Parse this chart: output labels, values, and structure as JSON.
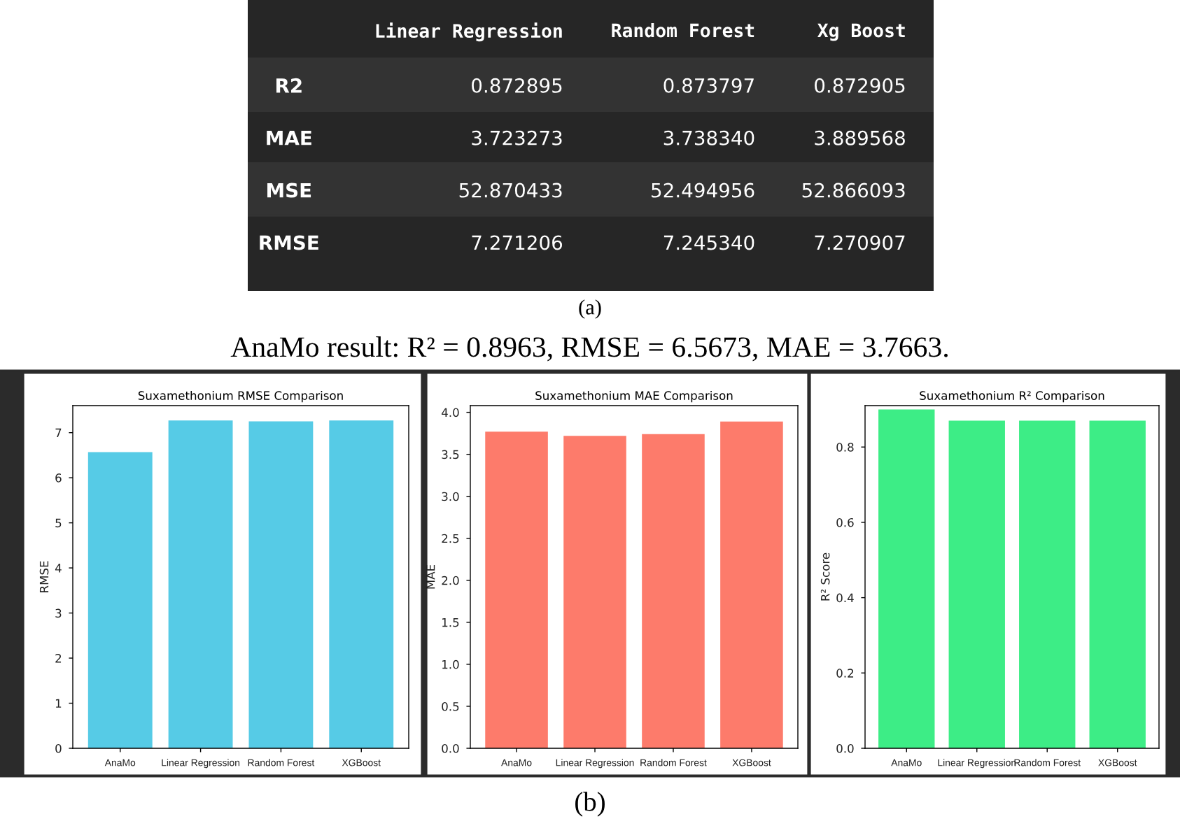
{
  "chart_data": [
    {
      "type": "other",
      "categories": [
        "Linear Regression",
        "Random Forest",
        "Xg Boost"
      ],
      "y_categories": [
        "R2",
        "MAE",
        "MSE",
        "RMSE"
      ],
      "cell_labels": [
        [
          "0.872895",
          "0.873797",
          "0.872905"
        ],
        [
          "3.723273",
          "3.738340",
          "3.889568"
        ],
        [
          "52.870433",
          "52.494956",
          "52.866093"
        ],
        [
          "7.271206",
          "7.245340",
          "7.270907"
        ]
      ],
      "annotations": [
        "(a)",
        "AnaMo result: R² = 0.8963, RMSE = 6.5673, MAE = 3.7663."
      ]
    },
    {
      "type": "bar",
      "title": "Suxamethonium RMSE Comparison",
      "ylabel": "RMSE",
      "categories": [
        "AnaMo",
        "Linear Regression",
        "Random Forest",
        "XGBoost"
      ],
      "values": [
        6.57,
        7.27,
        7.25,
        7.27
      ],
      "color": "#56cbe6",
      "ylim": [
        0,
        7.6
      ],
      "yticks": [
        0,
        1,
        2,
        3,
        4,
        5,
        6,
        7
      ],
      "grid": false
    },
    {
      "type": "bar",
      "title": "Suxamethonium MAE Comparison",
      "ylabel": "MAE",
      "categories": [
        "AnaMo",
        "Linear Regression",
        "Random Forest",
        "XGBoost"
      ],
      "values": [
        3.77,
        3.72,
        3.74,
        3.89
      ],
      "color": "#fd7b6b",
      "ylim": [
        0,
        4.08
      ],
      "yticks": [
        {
          "value": 0,
          "label": "0.0"
        },
        0.5,
        {
          "value": 1,
          "label": "1.0"
        },
        1.5,
        {
          "value": 2,
          "label": "2.0"
        },
        2.5,
        {
          "value": 3,
          "label": "3.0"
        },
        3.5,
        {
          "value": 4,
          "label": "4.0"
        }
      ],
      "grid": false,
      "annotations": [
        "(b)"
      ]
    },
    {
      "type": "bar",
      "title": "Suxamethonium R² Comparison",
      "ylabel": "R² Score",
      "categories": [
        "AnaMo",
        "Linear Regression",
        "Random Forest",
        "XGBoost"
      ],
      "values": [
        0.9,
        0.87,
        0.87,
        0.87
      ],
      "color": "#3ded86",
      "ylim": [
        0,
        0.91
      ],
      "yticks": [
        {
          "value": 0,
          "label": "0.0"
        },
        0.2,
        0.4,
        0.6,
        0.8
      ],
      "grid": false
    }
  ]
}
